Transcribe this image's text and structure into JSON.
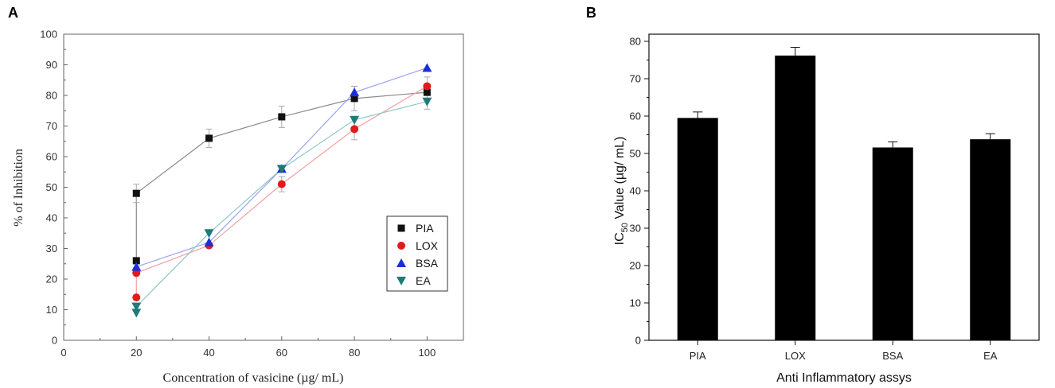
{
  "colors": {
    "PIA": "#111111",
    "LOX": "#e11b1b",
    "BSA": "#1a2fd6",
    "EA": "#1f7a7a",
    "line_PIA": "#888888",
    "line_LOX": "#f2a0a0",
    "line_BSA": "#9aa4ee",
    "line_EA": "#8fc7c7",
    "bar": "#000000"
  },
  "chart_data": [
    {
      "panel": "A",
      "type": "line",
      "xlabel": "Concentration of vasicine (µg/ mL)",
      "ylabel": "% of Inhibition",
      "xlim": [
        0,
        110
      ],
      "ylim": [
        0,
        100
      ],
      "xticks": [
        0,
        20,
        40,
        60,
        80,
        100
      ],
      "yticks": [
        0,
        10,
        20,
        30,
        40,
        50,
        60,
        70,
        80,
        90,
        100
      ],
      "legend": "right",
      "series": [
        {
          "name": "PIA",
          "marker": "square",
          "points": [
            [
              20,
              26
            ],
            [
              20,
              48
            ],
            [
              40,
              66
            ],
            [
              60,
              73
            ],
            [
              80,
              79
            ],
            [
              100,
              81
            ]
          ],
          "errors": [
            0,
            3,
            3,
            3.5,
            4,
            0
          ]
        },
        {
          "name": "LOX",
          "marker": "circle",
          "points": [
            [
              20,
              14
            ],
            [
              20,
              22
            ],
            [
              40,
              31
            ],
            [
              60,
              51
            ],
            [
              80,
              69
            ],
            [
              100,
              83
            ]
          ],
          "errors": [
            0,
            0,
            0,
            2.5,
            3.5,
            3
          ]
        },
        {
          "name": "BSA",
          "marker": "triangle-up",
          "points": [
            [
              20,
              24
            ],
            [
              40,
              32
            ],
            [
              60,
              56
            ],
            [
              80,
              81
            ],
            [
              100,
              89
            ]
          ],
          "errors": [
            0,
            0,
            0,
            2,
            0
          ]
        },
        {
          "name": "EA",
          "marker": "triangle-down",
          "points": [
            [
              20,
              9
            ],
            [
              20,
              11
            ],
            [
              40,
              35
            ],
            [
              60,
              56
            ],
            [
              80,
              72
            ],
            [
              100,
              78
            ]
          ],
          "errors": [
            0,
            0,
            0,
            0,
            0,
            2.5
          ]
        }
      ]
    },
    {
      "panel": "B",
      "type": "bar",
      "xlabel": "Anti Inflammatory assys",
      "ylabel_main": "IC",
      "ylabel_sub": "50",
      "ylabel_rest": " Value (µg/ mL)",
      "ylim": [
        0,
        80
      ],
      "yticks": [
        0,
        10,
        20,
        30,
        40,
        50,
        60,
        70,
        80
      ],
      "categories": [
        "PIA",
        "LOX",
        "BSA",
        "EA"
      ],
      "values": [
        59.5,
        76.2,
        51.6,
        53.8
      ],
      "errors": [
        1.6,
        2.2,
        1.5,
        1.5
      ]
    }
  ]
}
